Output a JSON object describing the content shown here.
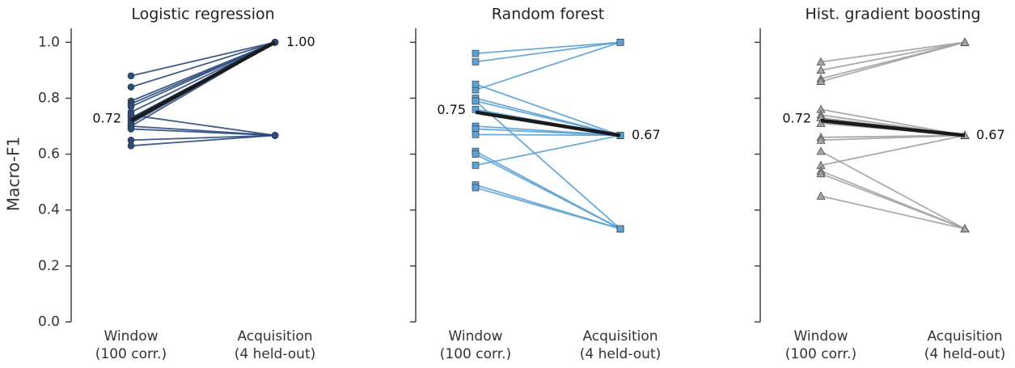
{
  "chart_data": [
    {
      "type": "slope",
      "title": "Logistic regression",
      "ylabel": "Macro-F1",
      "categories": [
        [
          "Window",
          "(100 corr.)"
        ],
        [
          "Acquisition",
          "(4 held-out)"
        ]
      ],
      "ylim": [
        0,
        1.05
      ],
      "yticks": [
        {
          "value": 0,
          "label": "0.0"
        },
        0.2,
        0.4,
        0.6,
        0.8,
        {
          "value": 1,
          "label": "1.0"
        }
      ],
      "show_ytick_labels": true,
      "color": "#2b4a7e",
      "marker": "circle",
      "series": [
        {
          "values": [
            0.88,
            1.0
          ]
        },
        {
          "values": [
            0.84,
            1.0
          ]
        },
        {
          "values": [
            0.79,
            1.0
          ]
        },
        {
          "values": [
            0.78,
            1.0
          ]
        },
        {
          "values": [
            0.77,
            1.0
          ]
        },
        {
          "values": [
            0.75,
            1.0
          ]
        },
        {
          "values": [
            0.73,
            1.0
          ]
        },
        {
          "values": [
            0.72,
            1.0
          ]
        },
        {
          "values": [
            0.71,
            1.0
          ]
        },
        {
          "values": [
            0.7,
            1.0
          ]
        },
        {
          "values": [
            0.74,
            0.667
          ]
        },
        {
          "values": [
            0.7,
            0.667
          ]
        },
        {
          "values": [
            0.69,
            0.667
          ]
        },
        {
          "values": [
            0.65,
            0.667
          ]
        },
        {
          "values": [
            0.63,
            0.667
          ]
        }
      ],
      "mean": {
        "values": [
          0.72,
          1.0
        ],
        "value_labels": [
          "0.72",
          "1.00"
        ],
        "color": "#1a1a1a"
      }
    },
    {
      "type": "slope",
      "title": "Random forest",
      "categories": [
        [
          "Window",
          "(100 corr.)"
        ],
        [
          "Acquisition",
          "(4 held-out)"
        ]
      ],
      "ylim": [
        0,
        1.05
      ],
      "yticks": [
        0,
        0.2,
        0.4,
        0.6,
        0.8,
        1
      ],
      "show_ytick_labels": false,
      "color": "#5aa2d4",
      "marker": "square",
      "series": [
        {
          "values": [
            0.96,
            1.0
          ]
        },
        {
          "values": [
            0.93,
            1.0
          ]
        },
        {
          "values": [
            0.83,
            1.0
          ]
        },
        {
          "values": [
            0.85,
            0.667
          ]
        },
        {
          "values": [
            0.8,
            0.667
          ]
        },
        {
          "values": [
            0.79,
            0.667
          ]
        },
        {
          "values": [
            0.76,
            0.667
          ]
        },
        {
          "values": [
            0.7,
            0.667
          ]
        },
        {
          "values": [
            0.69,
            0.667
          ]
        },
        {
          "values": [
            0.67,
            0.667
          ]
        },
        {
          "values": [
            0.56,
            0.667
          ]
        },
        {
          "values": [
            0.79,
            0.333
          ]
        },
        {
          "values": [
            0.61,
            0.333
          ]
        },
        {
          "values": [
            0.6,
            0.333
          ]
        },
        {
          "values": [
            0.49,
            0.333
          ]
        },
        {
          "values": [
            0.48,
            0.333
          ]
        }
      ],
      "mean": {
        "values": [
          0.75,
          0.667
        ],
        "value_labels": [
          "0.75",
          "0.67"
        ],
        "color": "#1a1a1a"
      }
    },
    {
      "type": "slope",
      "title": "Hist. gradient boosting",
      "categories": [
        [
          "Window",
          "(100 corr.)"
        ],
        [
          "Acquisition",
          "(4 held-out)"
        ]
      ],
      "ylim": [
        0,
        1.05
      ],
      "yticks": [
        0,
        0.2,
        0.4,
        0.6,
        0.8,
        1
      ],
      "show_ytick_labels": false,
      "color": "#a3a3a3",
      "marker": "triangle",
      "series": [
        {
          "values": [
            0.93,
            1.0
          ]
        },
        {
          "values": [
            0.9,
            1.0
          ]
        },
        {
          "values": [
            0.87,
            1.0
          ]
        },
        {
          "values": [
            0.86,
            1.0
          ]
        },
        {
          "values": [
            0.76,
            0.667
          ]
        },
        {
          "values": [
            0.74,
            0.667
          ]
        },
        {
          "values": [
            0.73,
            0.667
          ]
        },
        {
          "values": [
            0.71,
            0.667
          ]
        },
        {
          "values": [
            0.66,
            0.667
          ]
        },
        {
          "values": [
            0.65,
            0.667
          ]
        },
        {
          "values": [
            0.56,
            0.667
          ]
        },
        {
          "values": [
            0.61,
            0.333
          ]
        },
        {
          "values": [
            0.54,
            0.333
          ]
        },
        {
          "values": [
            0.53,
            0.333
          ]
        },
        {
          "values": [
            0.45,
            0.333
          ]
        }
      ],
      "mean": {
        "values": [
          0.72,
          0.667
        ],
        "value_labels": [
          "0.72",
          "0.67"
        ],
        "color": "#1a1a1a"
      }
    }
  ]
}
